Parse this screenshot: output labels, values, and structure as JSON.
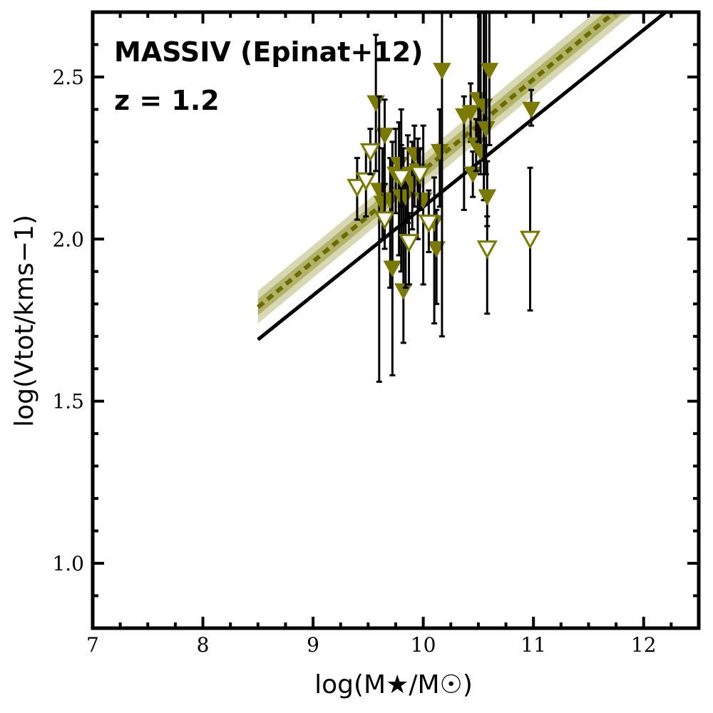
{
  "chart_data": {
    "type": "scatter",
    "annotations": [
      "MASSIV (Epinat+12)",
      "z = 1.2"
    ],
    "xlabel": "log(M★/M☉)",
    "ylabel": "log(Vtot/kms−1)",
    "xlim": [
      7,
      12.5
    ],
    "ylim": [
      0.8,
      2.7
    ],
    "xticks": [
      "7",
      "8",
      "9",
      "10",
      "11",
      "12"
    ],
    "yticks": [
      "1.0",
      "1.5",
      "2.0",
      "2.5"
    ],
    "grid": false,
    "colors": {
      "marker": "#7a7a00",
      "band_outer": "#c9c99a",
      "band_inner": "#a6a650",
      "fit_line": "#6b6b00",
      "reference_line": "#000000",
      "error_bar": "#000000"
    },
    "fit": {
      "x": [
        8.5,
        12.2
      ],
      "y": [
        1.79,
        2.83
      ],
      "band_outer_halfwidth": 0.05,
      "band_inner_halfwidth": 0.025,
      "style": "dashed"
    },
    "reference_line": {
      "x": [
        8.5,
        12.2
      ],
      "y": [
        1.69,
        2.7
      ]
    },
    "series": [
      {
        "marker": "filled-down-triangle",
        "points": [
          {
            "x": 9.57,
            "y": 2.42,
            "lo": 2.21,
            "hi": 2.63
          },
          {
            "x": 9.65,
            "y": 2.32,
            "lo": 2.08,
            "hi": 2.43
          },
          {
            "x": 9.6,
            "y": 2.15,
            "lo": 1.56,
            "hi": 2.44
          },
          {
            "x": 9.63,
            "y": 2.11,
            "lo": 2.0,
            "hi": 2.28
          },
          {
            "x": 9.7,
            "y": 2.12,
            "lo": 1.85,
            "hi": 2.25
          },
          {
            "x": 9.72,
            "y": 1.91,
            "lo": 1.58,
            "hi": 2.3
          },
          {
            "x": 9.75,
            "y": 2.2,
            "lo": 2.08,
            "hi": 2.34
          },
          {
            "x": 9.78,
            "y": 2.23,
            "lo": 1.95,
            "hi": 2.36
          },
          {
            "x": 9.8,
            "y": 2.13,
            "lo": 1.9,
            "hi": 2.4
          },
          {
            "x": 9.82,
            "y": 1.84,
            "lo": 1.68,
            "hi": 2.28
          },
          {
            "x": 9.84,
            "y": 2.13,
            "lo": 1.85,
            "hi": 2.22
          },
          {
            "x": 9.86,
            "y": 2.2,
            "lo": 2.05,
            "hi": 2.32
          },
          {
            "x": 9.9,
            "y": 2.17,
            "lo": 2.03,
            "hi": 2.3
          },
          {
            "x": 9.92,
            "y": 2.26,
            "lo": 2.1,
            "hi": 2.35
          },
          {
            "x": 9.95,
            "y": 2.21,
            "lo": 2.0,
            "hi": 2.31
          },
          {
            "x": 10.0,
            "y": 2.12,
            "lo": 1.86,
            "hi": 2.35
          },
          {
            "x": 10.1,
            "y": 2.05,
            "lo": 1.74,
            "hi": 2.19
          },
          {
            "x": 10.12,
            "y": 1.97,
            "lo": 1.8,
            "hi": 2.09
          },
          {
            "x": 10.15,
            "y": 2.27,
            "lo": 2.1,
            "hi": 2.4
          },
          {
            "x": 10.17,
            "y": 2.52,
            "lo": 1.7,
            "hi": 2.75
          },
          {
            "x": 10.37,
            "y": 2.38,
            "lo": 2.09,
            "hi": 2.44
          },
          {
            "x": 10.43,
            "y": 2.39,
            "lo": 2.3,
            "hi": 2.48
          },
          {
            "x": 10.45,
            "y": 2.2,
            "lo": 2.13,
            "hi": 2.27
          },
          {
            "x": 10.48,
            "y": 2.29,
            "lo": 2.21,
            "hi": 2.37
          },
          {
            "x": 10.5,
            "y": 2.43,
            "lo": 2.3,
            "hi": 2.75
          },
          {
            "x": 10.52,
            "y": 2.27,
            "lo": 2.2,
            "hi": 2.75
          },
          {
            "x": 10.55,
            "y": 2.41,
            "lo": 2.12,
            "hi": 2.75
          },
          {
            "x": 10.57,
            "y": 2.34,
            "lo": 2.2,
            "hi": 2.75
          },
          {
            "x": 10.58,
            "y": 2.13,
            "lo": 2.04,
            "hi": 2.24
          },
          {
            "x": 10.6,
            "y": 2.52,
            "lo": 2.29,
            "hi": 2.75
          },
          {
            "x": 10.98,
            "y": 2.4,
            "lo": 2.35,
            "hi": 2.46
          }
        ]
      },
      {
        "marker": "open-down-triangle",
        "points": [
          {
            "x": 9.4,
            "y": 2.16,
            "lo": 2.06,
            "hi": 2.25
          },
          {
            "x": 9.48,
            "y": 2.18,
            "lo": 2.07,
            "hi": 2.28
          },
          {
            "x": 9.52,
            "y": 2.27,
            "lo": 2.2,
            "hi": 2.34
          },
          {
            "x": 9.65,
            "y": 2.06,
            "lo": 1.97,
            "hi": 2.17
          },
          {
            "x": 9.8,
            "y": 2.19,
            "lo": 2.1,
            "hi": 2.29
          },
          {
            "x": 9.87,
            "y": 1.99,
            "lo": 1.86,
            "hi": 2.08
          },
          {
            "x": 9.97,
            "y": 2.2,
            "lo": 2.09,
            "hi": 2.28
          },
          {
            "x": 10.05,
            "y": 2.05,
            "lo": 1.96,
            "hi": 2.15
          },
          {
            "x": 10.58,
            "y": 1.97,
            "lo": 1.77,
            "hi": 2.07
          },
          {
            "x": 10.97,
            "y": 2.0,
            "lo": 1.78,
            "hi": 2.22
          }
        ]
      }
    ]
  }
}
